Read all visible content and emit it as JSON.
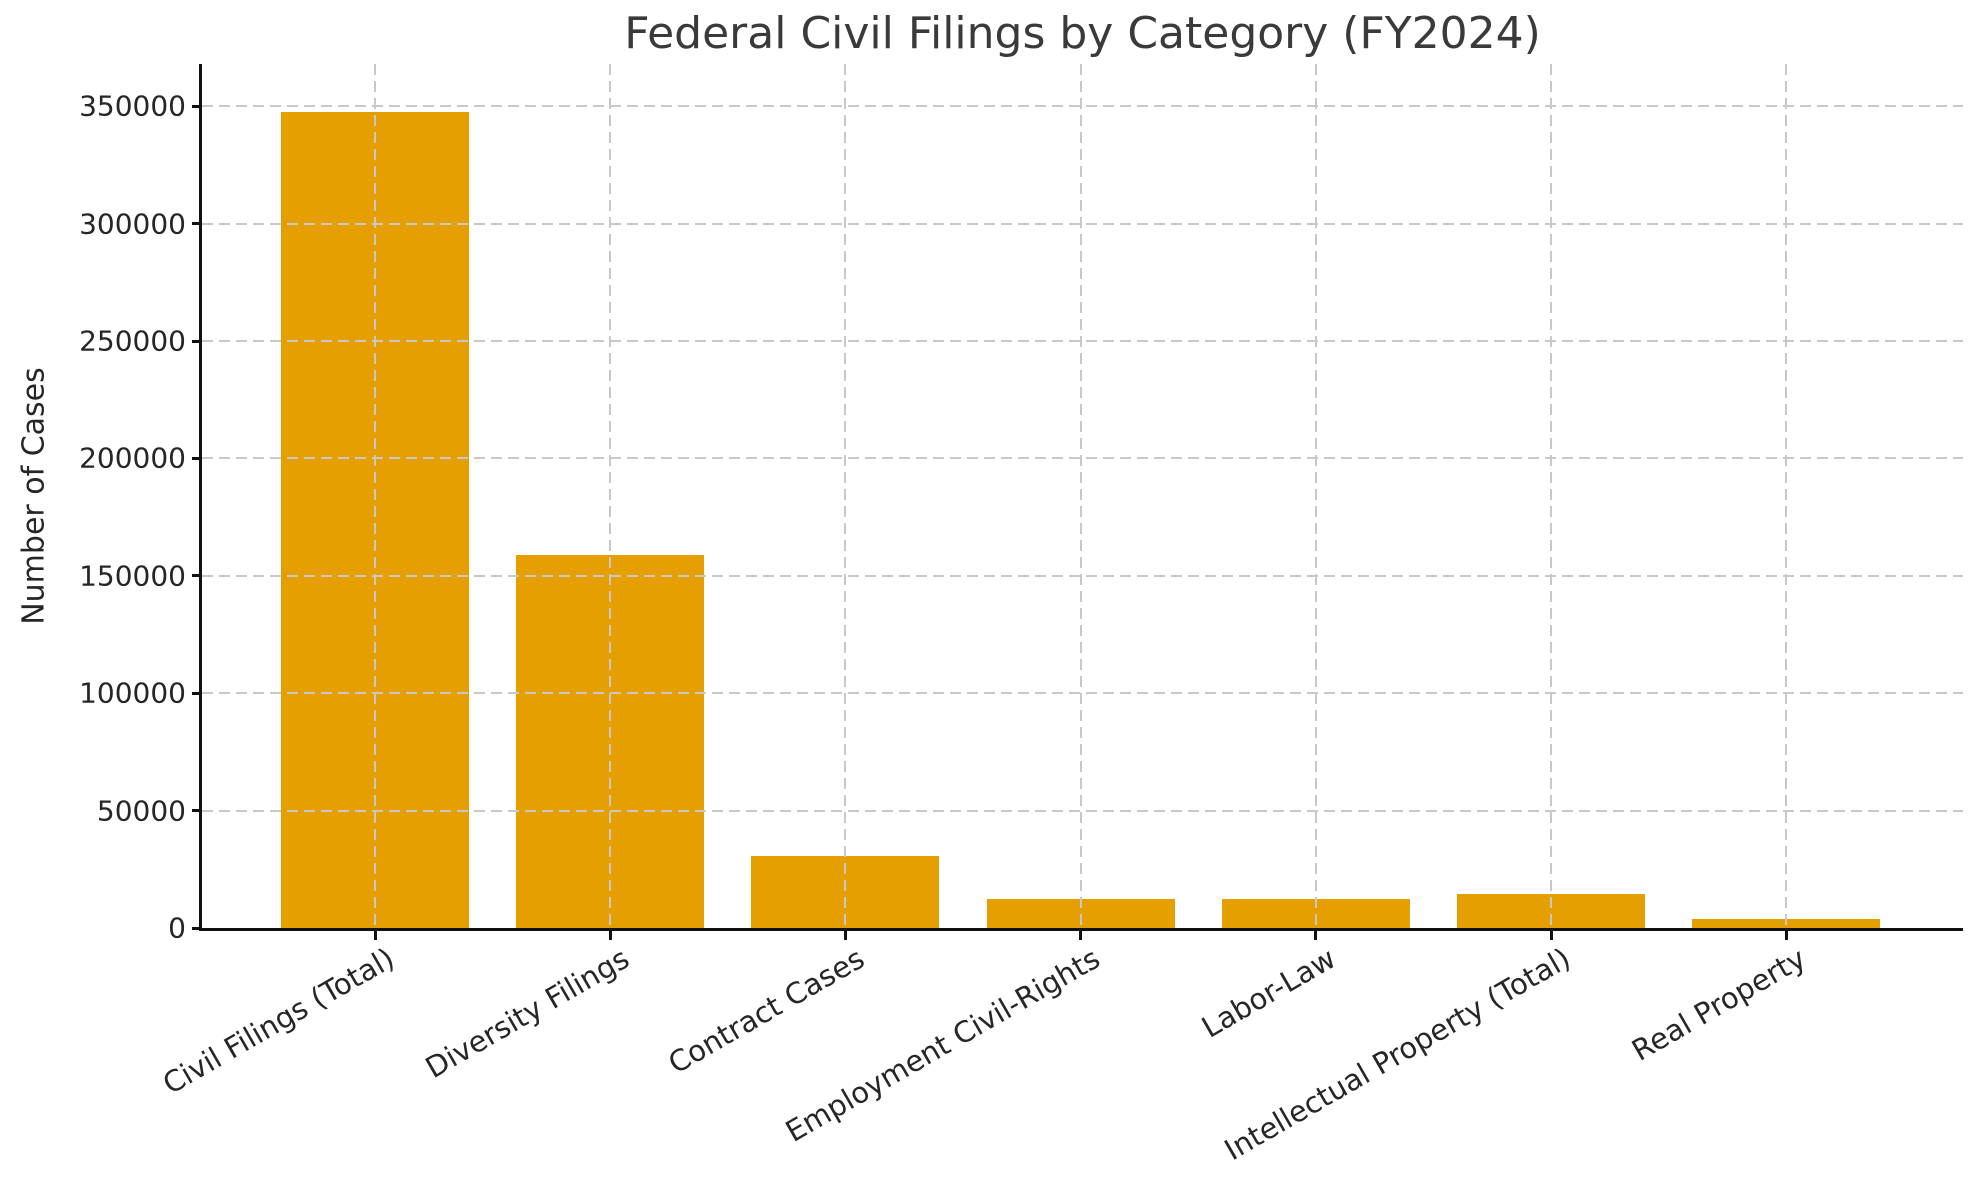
{
  "chart_data": {
    "type": "bar",
    "title": "Federal Civil Filings by Category (FY2024)",
    "xlabel": "",
    "ylabel": "Number of Cases",
    "categories": [
      "Civil Filings (Total)",
      "Diversity Filings",
      "Contract Cases",
      "Employment Civil-Rights",
      "Labor-Law",
      "Intellectual Property (Total)",
      "Real Property"
    ],
    "values": [
      347500,
      159000,
      30600,
      12500,
      12300,
      14700,
      3900
    ],
    "ylim": [
      0,
      368000
    ],
    "yticks": [
      0,
      50000,
      100000,
      150000,
      200000,
      250000,
      300000,
      350000
    ],
    "bar_color": "#E69F00",
    "grid": true,
    "grid_style": "dashed",
    "grid_color": "#c8c8c8",
    "grid_on_top": true,
    "x_tick_rotation_deg": 30,
    "legend_position": "none"
  }
}
